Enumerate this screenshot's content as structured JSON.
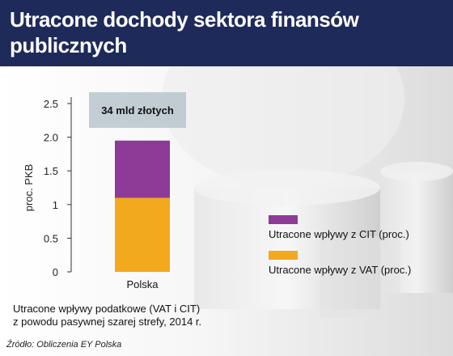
{
  "header": {
    "title": "Utracone dochody sektora finansów publicznych"
  },
  "chart_data": {
    "type": "bar",
    "stacked": true,
    "categories": [
      "Polska"
    ],
    "series": [
      {
        "name": "Utracone wpływy z VAT (proc.)",
        "values": [
          1.1
        ],
        "color": "#f2a91e"
      },
      {
        "name": "Utracone wpływy z CIT (proc.)",
        "values": [
          0.85
        ],
        "color": "#8e3a97"
      }
    ],
    "ylabel": "proc. PKB",
    "ylim": [
      0,
      2.5
    ],
    "yticks": [
      0,
      0.5,
      1,
      1.5,
      2.0,
      2.5
    ],
    "ytick_labels": [
      "0",
      "0.5",
      "1",
      "1.5",
      "2.0",
      "2.5"
    ],
    "annotation": "34 mld złotych",
    "legend_position": "right"
  },
  "note": {
    "line1": "Utracone wpływy podatkowe (VAT i CIT)",
    "line2": "z powodu pasywnej szarej strefy, 2014 r."
  },
  "source": "Źródło: Obliczenia EY Polska"
}
